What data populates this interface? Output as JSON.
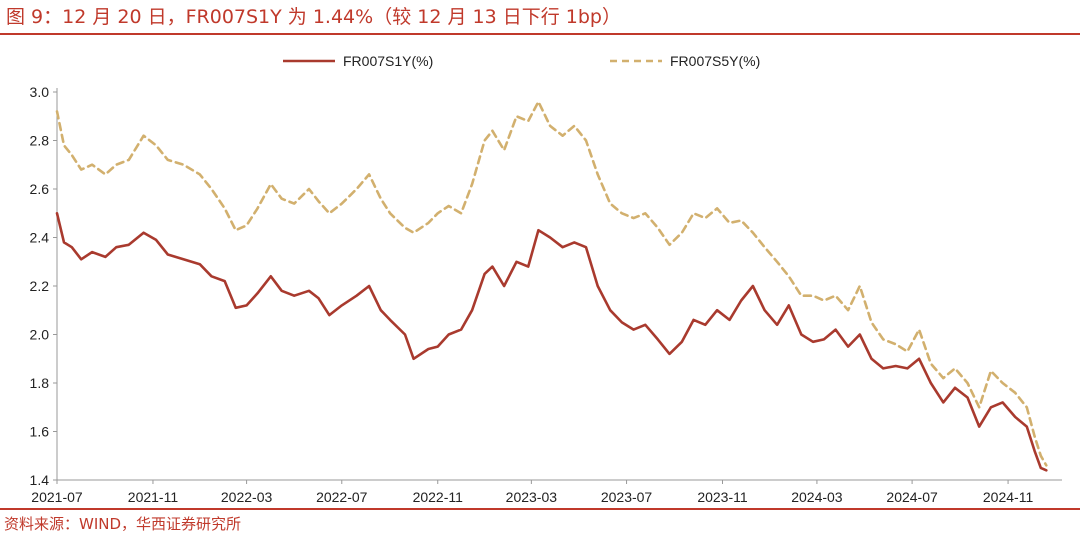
{
  "title": "图 9：12 月 20 日，FR007S1Y 为 1.44%（较 12 月 13 日下行 1bp）",
  "source": "资料来源：WIND，华西证券研究所",
  "chart_data": {
    "type": "line",
    "title": "图 9：12 月 20 日，FR007S1Y 为 1.44%（较 12 月 13 日下行 1bp）",
    "xlabel": "",
    "ylabel": "",
    "xlim": [
      "2021-07",
      "2024-12"
    ],
    "ylim": [
      1.4,
      3.0
    ],
    "yticks": [
      "1.4",
      "1.6",
      "1.8",
      "2.0",
      "2.2",
      "2.4",
      "2.6",
      "2.8",
      "3.0"
    ],
    "xticks": [
      "2021-07",
      "2021-11",
      "2022-03",
      "2022-07",
      "2022-11",
      "2023-03",
      "2023-07",
      "2023-11",
      "2024-03",
      "2024-07",
      "2024-11"
    ],
    "grid": false,
    "legend_position": "top",
    "series": [
      {
        "name": "FR007S1Y(%)",
        "color": "#a93a2e",
        "style": "solid",
        "points": [
          [
            "2021-07-01",
            2.5
          ],
          [
            "2021-07-10",
            2.38
          ],
          [
            "2021-07-20",
            2.36
          ],
          [
            "2021-08-01",
            2.31
          ],
          [
            "2021-08-15",
            2.34
          ],
          [
            "2021-09-01",
            2.32
          ],
          [
            "2021-09-15",
            2.36
          ],
          [
            "2021-10-01",
            2.37
          ],
          [
            "2021-10-20",
            2.42
          ],
          [
            "2021-11-05",
            2.39
          ],
          [
            "2021-11-20",
            2.33
          ],
          [
            "2021-12-10",
            2.31
          ],
          [
            "2021-12-31",
            2.29
          ],
          [
            "2022-01-15",
            2.24
          ],
          [
            "2022-02-01",
            2.22
          ],
          [
            "2022-02-15",
            2.11
          ],
          [
            "2022-03-01",
            2.12
          ],
          [
            "2022-03-15",
            2.17
          ],
          [
            "2022-04-01",
            2.24
          ],
          [
            "2022-04-15",
            2.18
          ],
          [
            "2022-05-01",
            2.16
          ],
          [
            "2022-05-20",
            2.18
          ],
          [
            "2022-06-01",
            2.15
          ],
          [
            "2022-06-15",
            2.08
          ],
          [
            "2022-07-01",
            2.12
          ],
          [
            "2022-07-20",
            2.16
          ],
          [
            "2022-08-05",
            2.2
          ],
          [
            "2022-08-20",
            2.1
          ],
          [
            "2022-09-01",
            2.06
          ],
          [
            "2022-09-20",
            2.0
          ],
          [
            "2022-10-01",
            1.9
          ],
          [
            "2022-10-20",
            1.94
          ],
          [
            "2022-11-01",
            1.95
          ],
          [
            "2022-11-15",
            2.0
          ],
          [
            "2022-12-01",
            2.02
          ],
          [
            "2022-12-15",
            2.1
          ],
          [
            "2022-12-31",
            2.25
          ],
          [
            "2023-01-10",
            2.28
          ],
          [
            "2023-01-25",
            2.2
          ],
          [
            "2023-02-10",
            2.3
          ],
          [
            "2023-02-25",
            2.28
          ],
          [
            "2023-03-10",
            2.43
          ],
          [
            "2023-03-25",
            2.4
          ],
          [
            "2023-04-10",
            2.36
          ],
          [
            "2023-04-25",
            2.38
          ],
          [
            "2023-05-10",
            2.36
          ],
          [
            "2023-05-25",
            2.2
          ],
          [
            "2023-06-10",
            2.1
          ],
          [
            "2023-06-25",
            2.05
          ],
          [
            "2023-07-10",
            2.02
          ],
          [
            "2023-07-25",
            2.04
          ],
          [
            "2023-08-10",
            1.98
          ],
          [
            "2023-08-25",
            1.92
          ],
          [
            "2023-09-10",
            1.97
          ],
          [
            "2023-09-25",
            2.06
          ],
          [
            "2023-10-10",
            2.04
          ],
          [
            "2023-10-25",
            2.1
          ],
          [
            "2023-11-10",
            2.06
          ],
          [
            "2023-11-25",
            2.14
          ],
          [
            "2023-12-10",
            2.2
          ],
          [
            "2023-12-25",
            2.1
          ],
          [
            "2024-01-10",
            2.04
          ],
          [
            "2024-01-25",
            2.12
          ],
          [
            "2024-02-10",
            2.0
          ],
          [
            "2024-02-25",
            1.97
          ],
          [
            "2024-03-10",
            1.98
          ],
          [
            "2024-03-25",
            2.02
          ],
          [
            "2024-04-10",
            1.95
          ],
          [
            "2024-04-25",
            2.0
          ],
          [
            "2024-05-10",
            1.9
          ],
          [
            "2024-05-25",
            1.86
          ],
          [
            "2024-06-10",
            1.87
          ],
          [
            "2024-06-25",
            1.86
          ],
          [
            "2024-07-10",
            1.9
          ],
          [
            "2024-07-25",
            1.8
          ],
          [
            "2024-08-10",
            1.72
          ],
          [
            "2024-08-25",
            1.78
          ],
          [
            "2024-09-10",
            1.74
          ],
          [
            "2024-09-25",
            1.62
          ],
          [
            "2024-10-10",
            1.7
          ],
          [
            "2024-10-25",
            1.72
          ],
          [
            "2024-11-10",
            1.66
          ],
          [
            "2024-11-25",
            1.62
          ],
          [
            "2024-12-05",
            1.52
          ],
          [
            "2024-12-13",
            1.45
          ],
          [
            "2024-12-20",
            1.44
          ]
        ]
      },
      {
        "name": "FR007S5Y(%)",
        "color": "#d2b06e",
        "style": "dashed",
        "points": [
          [
            "2021-07-01",
            2.92
          ],
          [
            "2021-07-10",
            2.78
          ],
          [
            "2021-07-20",
            2.74
          ],
          [
            "2021-08-01",
            2.68
          ],
          [
            "2021-08-15",
            2.7
          ],
          [
            "2021-09-01",
            2.66
          ],
          [
            "2021-09-15",
            2.7
          ],
          [
            "2021-10-01",
            2.72
          ],
          [
            "2021-10-20",
            2.82
          ],
          [
            "2021-11-05",
            2.78
          ],
          [
            "2021-11-20",
            2.72
          ],
          [
            "2021-12-10",
            2.7
          ],
          [
            "2021-12-31",
            2.66
          ],
          [
            "2022-01-15",
            2.6
          ],
          [
            "2022-02-01",
            2.52
          ],
          [
            "2022-02-15",
            2.43
          ],
          [
            "2022-03-01",
            2.45
          ],
          [
            "2022-03-15",
            2.52
          ],
          [
            "2022-04-01",
            2.62
          ],
          [
            "2022-04-15",
            2.56
          ],
          [
            "2022-05-01",
            2.54
          ],
          [
            "2022-05-20",
            2.6
          ],
          [
            "2022-06-01",
            2.55
          ],
          [
            "2022-06-15",
            2.5
          ],
          [
            "2022-07-01",
            2.54
          ],
          [
            "2022-07-20",
            2.6
          ],
          [
            "2022-08-05",
            2.66
          ],
          [
            "2022-08-20",
            2.56
          ],
          [
            "2022-09-01",
            2.5
          ],
          [
            "2022-09-20",
            2.44
          ],
          [
            "2022-10-01",
            2.42
          ],
          [
            "2022-10-20",
            2.46
          ],
          [
            "2022-11-01",
            2.5
          ],
          [
            "2022-11-15",
            2.53
          ],
          [
            "2022-12-01",
            2.5
          ],
          [
            "2022-12-15",
            2.62
          ],
          [
            "2022-12-31",
            2.8
          ],
          [
            "2023-01-10",
            2.84
          ],
          [
            "2023-01-25",
            2.76
          ],
          [
            "2023-02-10",
            2.9
          ],
          [
            "2023-02-25",
            2.88
          ],
          [
            "2023-03-10",
            2.96
          ],
          [
            "2023-03-25",
            2.86
          ],
          [
            "2023-04-10",
            2.82
          ],
          [
            "2023-04-25",
            2.86
          ],
          [
            "2023-05-10",
            2.8
          ],
          [
            "2023-05-25",
            2.66
          ],
          [
            "2023-06-10",
            2.54
          ],
          [
            "2023-06-25",
            2.5
          ],
          [
            "2023-07-10",
            2.48
          ],
          [
            "2023-07-25",
            2.5
          ],
          [
            "2023-08-10",
            2.44
          ],
          [
            "2023-08-25",
            2.37
          ],
          [
            "2023-09-10",
            2.42
          ],
          [
            "2023-09-25",
            2.5
          ],
          [
            "2023-10-10",
            2.48
          ],
          [
            "2023-10-25",
            2.52
          ],
          [
            "2023-11-10",
            2.46
          ],
          [
            "2023-11-25",
            2.47
          ],
          [
            "2023-12-10",
            2.42
          ],
          [
            "2023-12-25",
            2.36
          ],
          [
            "2024-01-10",
            2.3
          ],
          [
            "2024-01-25",
            2.24
          ],
          [
            "2024-02-10",
            2.16
          ],
          [
            "2024-02-25",
            2.16
          ],
          [
            "2024-03-10",
            2.14
          ],
          [
            "2024-03-25",
            2.16
          ],
          [
            "2024-04-10",
            2.1
          ],
          [
            "2024-04-25",
            2.2
          ],
          [
            "2024-05-10",
            2.05
          ],
          [
            "2024-05-25",
            1.98
          ],
          [
            "2024-06-10",
            1.96
          ],
          [
            "2024-06-25",
            1.93
          ],
          [
            "2024-07-10",
            2.02
          ],
          [
            "2024-07-25",
            1.88
          ],
          [
            "2024-08-10",
            1.82
          ],
          [
            "2024-08-25",
            1.86
          ],
          [
            "2024-09-10",
            1.8
          ],
          [
            "2024-09-25",
            1.7
          ],
          [
            "2024-10-10",
            1.85
          ],
          [
            "2024-10-25",
            1.8
          ],
          [
            "2024-11-10",
            1.76
          ],
          [
            "2024-11-25",
            1.7
          ],
          [
            "2024-12-05",
            1.58
          ],
          [
            "2024-12-13",
            1.5
          ],
          [
            "2024-12-20",
            1.46
          ]
        ]
      }
    ]
  }
}
